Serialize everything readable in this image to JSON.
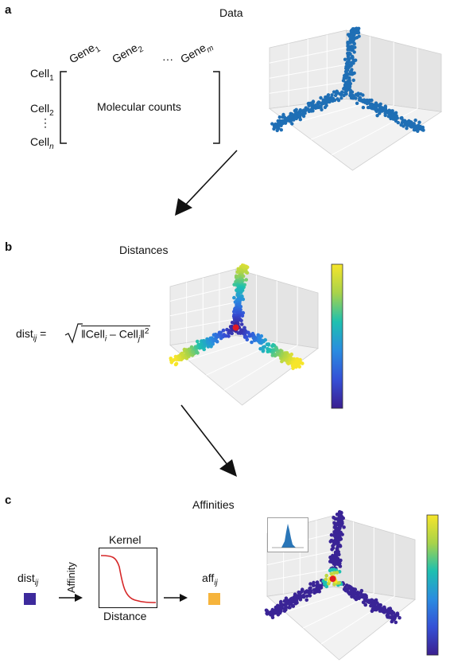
{
  "panel_a": {
    "letter": "a",
    "title": "Data",
    "gene_label": "Gene",
    "gene_subs": [
      "1",
      "2",
      "m"
    ],
    "gene_ellipsis": "···",
    "cell_label": "Cell",
    "cell_subs": [
      "1",
      "2",
      "n"
    ],
    "cell_ellipsis": "⋮",
    "matrix_label": "Molecular counts",
    "point_color": "#1f6fb5"
  },
  "panel_b": {
    "letter": "b",
    "title": "Distances",
    "formula_prefix": "dist",
    "formula_sub": "ij",
    "formula_eq": "=",
    "formula_body_a": "‖Cell",
    "formula_sub_i": "i",
    "formula_body_b": " – Cell",
    "formula_sub_j": "j",
    "formula_body_c": "‖",
    "formula_sup": "2"
  },
  "panel_c": {
    "letter": "c",
    "title": "Affinities",
    "dist_label": "dist",
    "dist_sub": "ij",
    "kernel_title": "Kernel",
    "kernel_ylabel": "Affinity",
    "kernel_xlabel": "Distance",
    "aff_label": "aff",
    "aff_sub": "ij",
    "dist_swatch": "#3d2a9c",
    "aff_swatch": "#f6b43c",
    "kernel_curve_color": "#d62728"
  }
}
